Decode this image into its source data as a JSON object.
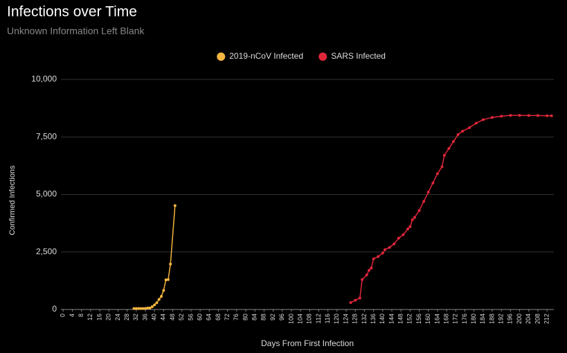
{
  "chart_data": {
    "type": "line",
    "title": "Infections over Time",
    "subtitle": "Unknown Information Left Blank",
    "x_label": "Days From First Infection",
    "y_label": "Confirmed Infections",
    "legend_position": "top",
    "grid": true,
    "xlim": [
      -1,
      215
    ],
    "ylim": [
      0,
      10000
    ],
    "xticks": [
      0,
      4,
      8,
      12,
      16,
      20,
      24,
      28,
      32,
      36,
      40,
      44,
      48,
      52,
      56,
      60,
      64,
      68,
      72,
      76,
      80,
      84,
      88,
      92,
      96,
      100,
      104,
      108,
      112,
      116,
      120,
      124,
      128,
      132,
      136,
      140,
      144,
      148,
      152,
      156,
      160,
      164,
      168,
      172,
      176,
      180,
      184,
      188,
      192,
      196,
      200,
      204,
      208,
      212
    ],
    "yticks": [
      0,
      {
        "value": 2500,
        "label": "2,500"
      },
      {
        "value": 5000,
        "label": "5,000"
      },
      {
        "value": 7500,
        "label": "7,500"
      },
      {
        "value": 10000,
        "label": "10,000"
      }
    ],
    "series": [
      {
        "name": "2019-nCoV Infected",
        "color": "#f4b63f",
        "x": [
          31,
          32,
          33,
          34,
          35,
          36,
          37,
          38,
          39,
          40,
          41,
          42,
          43,
          44,
          45,
          46,
          47,
          49
        ],
        "values": [
          41,
          41,
          41,
          41,
          41,
          45,
          62,
          62,
          121,
          198,
          291,
          440,
          571,
          830,
          1287,
          1300,
          1975,
          4515
        ]
      },
      {
        "name": "SARS Infected",
        "color": "#e0263a",
        "x": [
          126,
          128,
          130,
          131,
          133,
          134,
          135,
          136,
          138,
          140,
          141,
          143,
          145,
          147,
          149,
          151,
          152,
          153,
          154,
          156,
          158,
          160,
          162,
          164,
          166,
          167,
          169,
          171,
          173,
          175,
          178,
          181,
          184,
          188,
          192,
          196,
          200,
          204,
          208,
          212,
          214
        ],
        "values": [
          300,
          400,
          500,
          1300,
          1500,
          1700,
          1800,
          2200,
          2300,
          2450,
          2600,
          2700,
          2850,
          3100,
          3250,
          3500,
          3600,
          3900,
          4000,
          4300,
          4700,
          5100,
          5500,
          5900,
          6200,
          6700,
          7000,
          7300,
          7600,
          7750,
          7900,
          8100,
          8250,
          8350,
          8400,
          8440,
          8440,
          8430,
          8430,
          8420,
          8420
        ]
      }
    ]
  }
}
